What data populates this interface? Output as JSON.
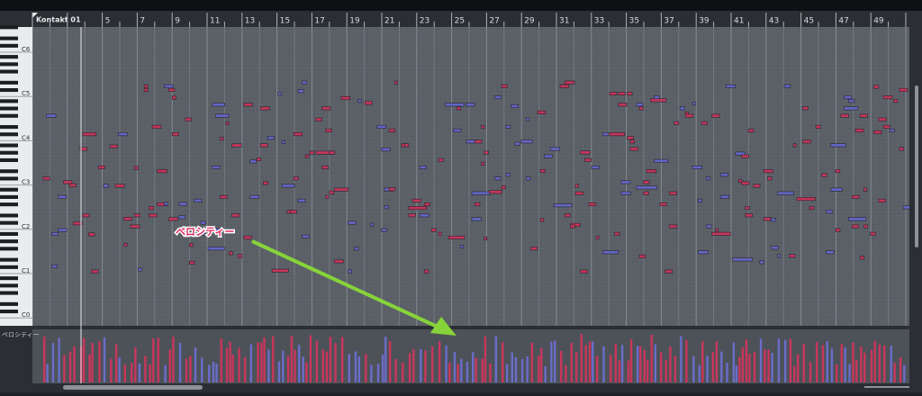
{
  "track": "Kontakt 01",
  "ruler": [
    "5",
    "7",
    "9",
    "11",
    "13",
    "15",
    "17",
    "19",
    "21",
    "23",
    "25",
    "27",
    "29",
    "31",
    "33",
    "35",
    "37",
    "39",
    "41",
    "43",
    "45",
    "47",
    "49"
  ],
  "pitch_labels": [
    "C6",
    "C5",
    "C4",
    "C3",
    "C2",
    "C1",
    "C0"
  ],
  "velocity_lane_label": "ベロシティー",
  "annotation": "ベロシティー"
}
